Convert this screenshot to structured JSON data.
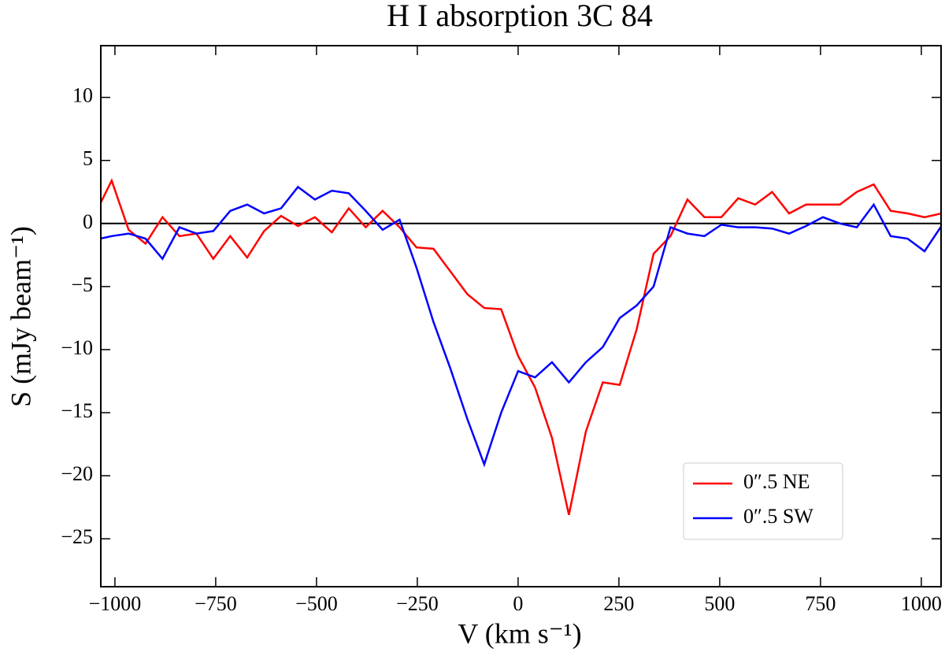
{
  "chart_data": {
    "type": "line",
    "title": "H I absorption 3C 84",
    "x_label": "V (km s⁻¹)",
    "y_label": "S (mJy beam⁻¹)",
    "x": [
      -1050,
      -1008,
      -966,
      -924,
      -882,
      -840,
      -798,
      -756,
      -714,
      -672,
      -630,
      -588,
      -546,
      -504,
      -462,
      -420,
      -378,
      -336,
      -294,
      -252,
      -210,
      -168,
      -126,
      -84,
      -42,
      0,
      42,
      84,
      126,
      168,
      210,
      252,
      294,
      336,
      378,
      420,
      462,
      504,
      546,
      588,
      630,
      672,
      714,
      756,
      798,
      840,
      882,
      924,
      966,
      1008,
      1050
    ],
    "series": [
      {
        "name": "0″.5 NE",
        "color": "#ff0000",
        "values": [
          0.7,
          3.4,
          -0.5,
          -1.6,
          0.5,
          -1.0,
          -0.8,
          -2.8,
          -1.0,
          -2.7,
          -0.6,
          0.6,
          -0.2,
          0.5,
          -0.7,
          1.2,
          -0.3,
          1.0,
          -0.3,
          -1.9,
          -2.0,
          -3.8,
          -5.6,
          -6.7,
          -6.8,
          -10.5,
          -13.0,
          -17.0,
          -23.1,
          -16.5,
          -12.6,
          -12.8,
          -8.4,
          -2.4,
          -1.0,
          1.9,
          0.5,
          0.5,
          2.0,
          1.5,
          2.5,
          0.8,
          1.5,
          1.5,
          1.5,
          2.5,
          3.1,
          1.0,
          0.8,
          0.5,
          0.8
        ]
      },
      {
        "name": "0″.5 SW",
        "color": "#0000ff",
        "values": [
          -1.3,
          -1.0,
          -0.8,
          -1.2,
          -2.8,
          -0.3,
          -0.8,
          -0.6,
          1.0,
          1.5,
          0.8,
          1.2,
          2.9,
          1.9,
          2.6,
          2.4,
          1.0,
          -0.5,
          0.3,
          -3.5,
          -7.8,
          -11.5,
          -15.5,
          -19.1,
          -15.0,
          -11.7,
          -12.2,
          -11.0,
          -12.6,
          -11.0,
          -9.8,
          -7.5,
          -6.5,
          -5.0,
          -0.3,
          -0.8,
          -1.0,
          -0.1,
          -0.3,
          -0.3,
          -0.4,
          -0.8,
          -0.2,
          0.5,
          0.0,
          -0.3,
          1.5,
          -1.0,
          -1.2,
          -2.2,
          -0.2
        ]
      }
    ],
    "xlim": [
      -1035,
      1049
    ],
    "ylim": [
      -28.8,
      14.1
    ],
    "xticks": [
      {
        "value": -1000,
        "label": "−1000"
      },
      {
        "value": -750,
        "label": "−750"
      },
      {
        "value": -500,
        "label": "−500"
      },
      {
        "value": -250,
        "label": "−250"
      },
      0,
      250,
      500,
      750,
      1000
    ],
    "yticks": [
      {
        "value": -25,
        "label": "−25"
      },
      {
        "value": -20,
        "label": "−20"
      },
      {
        "value": -15,
        "label": "−15"
      },
      {
        "value": -10,
        "label": "−10"
      },
      {
        "value": -5,
        "label": "−5"
      },
      0,
      5,
      10
    ],
    "zero_line": true,
    "legend": "lower right"
  }
}
